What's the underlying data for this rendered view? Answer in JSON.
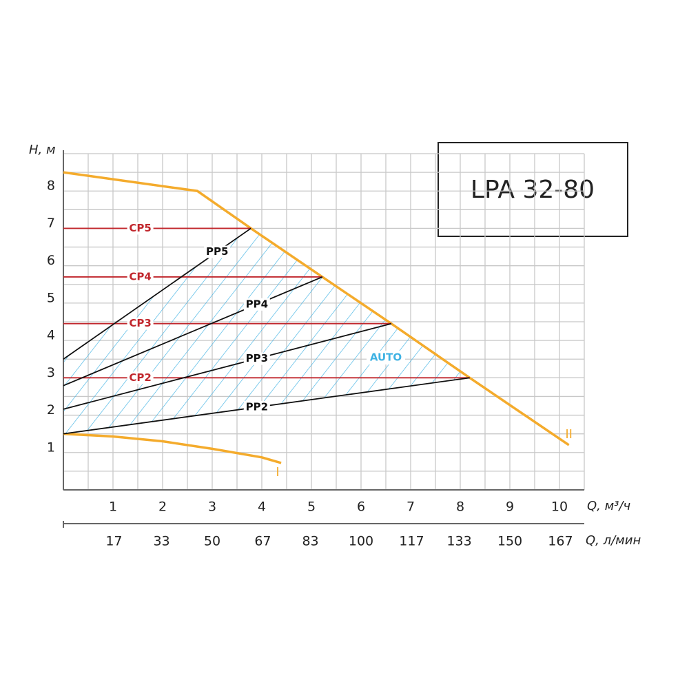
{
  "chart_data": {
    "type": "line",
    "title": "LPA 32-80",
    "y_label": "H, м",
    "x_label": "Q, м³/ч",
    "x2_label": "Q, л/мин",
    "annotation": "AUTO",
    "xlim": [
      0,
      10.5
    ],
    "ylim": [
      0,
      9
    ],
    "xticks": [
      1,
      2,
      3,
      4,
      5,
      6,
      7,
      8,
      9,
      10
    ],
    "yticks": [
      1,
      2,
      3,
      4,
      5,
      6,
      7,
      8
    ],
    "x2lim": [
      0,
      175
    ],
    "x2ticks": [
      17,
      33,
      50,
      67,
      83,
      100,
      117,
      133,
      150,
      167
    ],
    "grid": true,
    "grid_step": 0.5,
    "hatch_color": "#3fb2e3",
    "series": [
      {
        "name": "II",
        "color": "#f4ab2c",
        "x": [
          0,
          2.7,
          3.78,
          5.22,
          6.61,
          8.19,
          10.19
        ],
        "values": [
          8.5,
          8.0,
          7.0,
          5.7,
          4.45,
          3.0,
          1.2
        ]
      },
      {
        "name": "I",
        "color": "#f4ab2c",
        "x": [
          0,
          1,
          2,
          3,
          4,
          4.39
        ],
        "values": [
          1.5,
          1.43,
          1.3,
          1.1,
          0.87,
          0.72
        ]
      },
      {
        "name": "CP5",
        "color": "#c1272d",
        "x": [
          0,
          3.78
        ],
        "values": [
          7.0,
          7.0
        ]
      },
      {
        "name": "CP4",
        "color": "#c1272d",
        "x": [
          0,
          5.22
        ],
        "values": [
          5.7,
          5.7
        ]
      },
      {
        "name": "CP3",
        "color": "#c1272d",
        "x": [
          0,
          6.61
        ],
        "values": [
          4.45,
          4.45
        ]
      },
      {
        "name": "CP2",
        "color": "#c1272d",
        "x": [
          0,
          8.19
        ],
        "values": [
          3.0,
          3.0
        ]
      },
      {
        "name": "PP5",
        "color": "#111111",
        "x": [
          0,
          3.78
        ],
        "values": [
          3.5,
          7.0
        ]
      },
      {
        "name": "PP4",
        "color": "#111111",
        "x": [
          0,
          5.22
        ],
        "values": [
          2.79,
          5.7
        ]
      },
      {
        "name": "PP3",
        "color": "#111111",
        "x": [
          0,
          6.61
        ],
        "values": [
          2.16,
          4.45
        ]
      },
      {
        "name": "PP2",
        "color": "#111111",
        "x": [
          0,
          8.19
        ],
        "values": [
          1.5,
          3.0
        ]
      }
    ]
  }
}
